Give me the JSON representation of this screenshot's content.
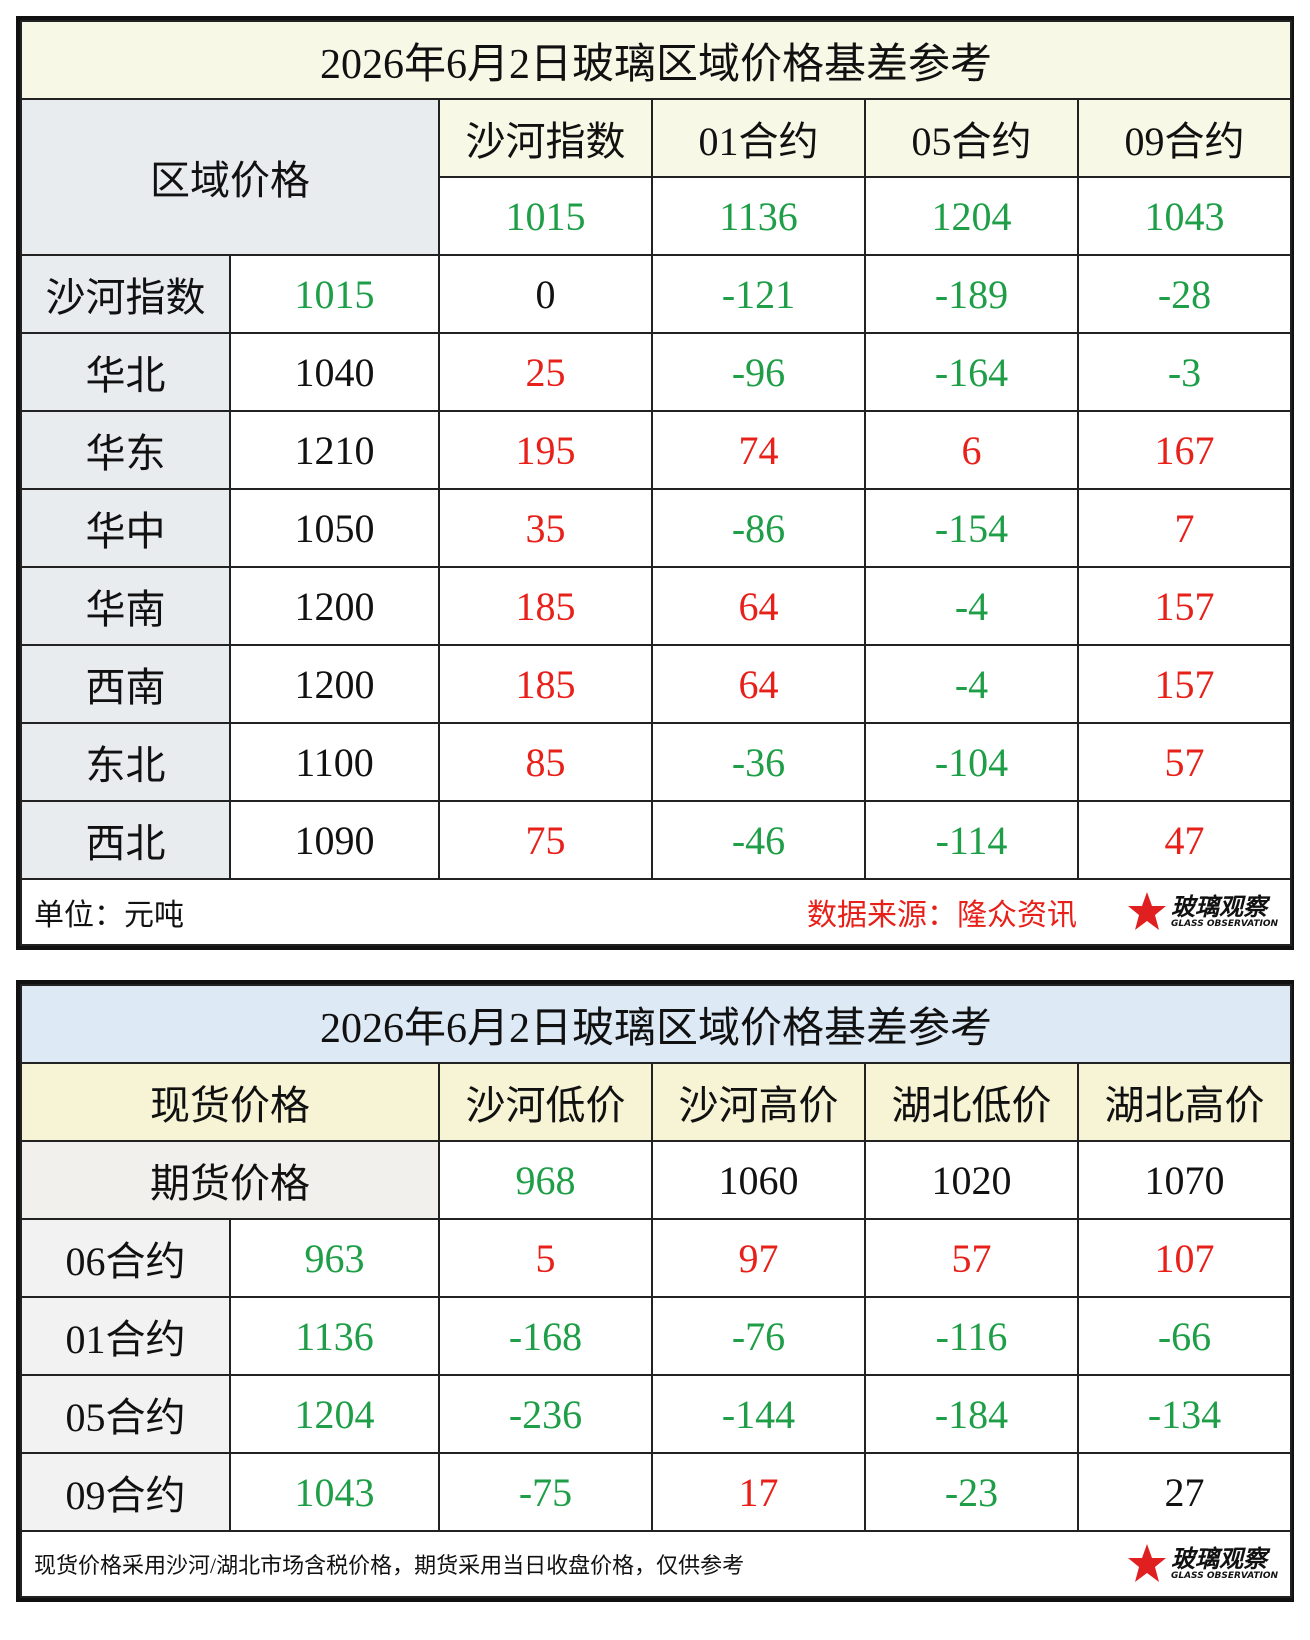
{
  "tables": [
    {
      "title": "2026年6月2日玻璃区域价格基差参考",
      "corner": "区域价格",
      "columns": [
        "沙河指数",
        "01合约",
        "05合约",
        "09合约"
      ],
      "column_values": [
        1015,
        1136,
        1204,
        1043
      ],
      "column_value_colors": [
        "#1e9e47",
        "#1e9e47",
        "#1e9e47",
        "#1e9e47"
      ],
      "rows": [
        {
          "label": "沙河指数",
          "price": 1015,
          "values": [
            0,
            -121,
            -189,
            -28
          ],
          "colors": [
            "#1e9e47",
            "#111111",
            "#1e9e47",
            "#1e9e47",
            "#1e9e47"
          ]
        },
        {
          "label": "华北",
          "price": 1040,
          "values": [
            25,
            -96,
            -164,
            -3
          ],
          "colors": [
            "#111111",
            "#e8201a",
            "#1e9e47",
            "#1e9e47",
            "#1e9e47"
          ]
        },
        {
          "label": "华东",
          "price": 1210,
          "values": [
            195,
            74,
            6,
            167
          ],
          "colors": [
            "#111111",
            "#e8201a",
            "#e8201a",
            "#e8201a",
            "#e8201a"
          ]
        },
        {
          "label": "华中",
          "price": 1050,
          "values": [
            35,
            -86,
            -154,
            7
          ],
          "colors": [
            "#111111",
            "#e8201a",
            "#1e9e47",
            "#1e9e47",
            "#e8201a"
          ]
        },
        {
          "label": "华南",
          "price": 1200,
          "values": [
            185,
            64,
            -4,
            157
          ],
          "colors": [
            "#111111",
            "#e8201a",
            "#e8201a",
            "#1e9e47",
            "#e8201a"
          ]
        },
        {
          "label": "西南",
          "price": 1200,
          "values": [
            185,
            64,
            -4,
            157
          ],
          "colors": [
            "#111111",
            "#e8201a",
            "#e8201a",
            "#1e9e47",
            "#e8201a"
          ]
        },
        {
          "label": "东北",
          "price": 1100,
          "values": [
            85,
            -36,
            -104,
            57
          ],
          "colors": [
            "#111111",
            "#e8201a",
            "#1e9e47",
            "#1e9e47",
            "#e8201a"
          ]
        },
        {
          "label": "西北",
          "price": 1090,
          "values": [
            75,
            -46,
            -114,
            47
          ],
          "colors": [
            "#111111",
            "#e8201a",
            "#1e9e47",
            "#1e9e47",
            "#e8201a"
          ]
        }
      ],
      "unit": "单位：元吨",
      "source": "数据来源：隆众资讯",
      "logo": {
        "name": "玻璃观察",
        "subtitle": "GLASS OBSERVATION"
      }
    },
    {
      "title": "2026年6月2日玻璃区域价格基差参考",
      "corner": "现货价格",
      "columns": [
        "沙河低价",
        "沙河高价",
        "湖北低价",
        "湖北高价"
      ],
      "sub_corner": "期货价格",
      "column_values": [
        968,
        1060,
        1020,
        1070
      ],
      "column_value_colors": [
        "#1e9e47",
        "#111111",
        "#111111",
        "#111111"
      ],
      "rows": [
        {
          "label": "06合约",
          "price": 963,
          "values": [
            5,
            97,
            57,
            107
          ],
          "colors": [
            "#1e9e47",
            "#e8201a",
            "#e8201a",
            "#e8201a",
            "#e8201a"
          ]
        },
        {
          "label": "01合约",
          "price": 1136,
          "values": [
            -168,
            -76,
            -116,
            -66
          ],
          "colors": [
            "#1e9e47",
            "#1e9e47",
            "#1e9e47",
            "#1e9e47",
            "#1e9e47"
          ]
        },
        {
          "label": "05合约",
          "price": 1204,
          "values": [
            -236,
            -144,
            -184,
            -134
          ],
          "colors": [
            "#1e9e47",
            "#1e9e47",
            "#1e9e47",
            "#1e9e47",
            "#1e9e47"
          ]
        },
        {
          "label": "09合约",
          "price": 1043,
          "values": [
            -75,
            17,
            -23,
            27
          ],
          "colors": [
            "#1e9e47",
            "#1e9e47",
            "#e8201a",
            "#1e9e47",
            "#111111"
          ]
        }
      ],
      "note": "现货价格采用沙河/湖北市场含税价格，期货采用当日收盘价格，仅供参考",
      "logo": {
        "name": "玻璃观察",
        "subtitle": "GLASS OBSERVATION"
      }
    }
  ]
}
